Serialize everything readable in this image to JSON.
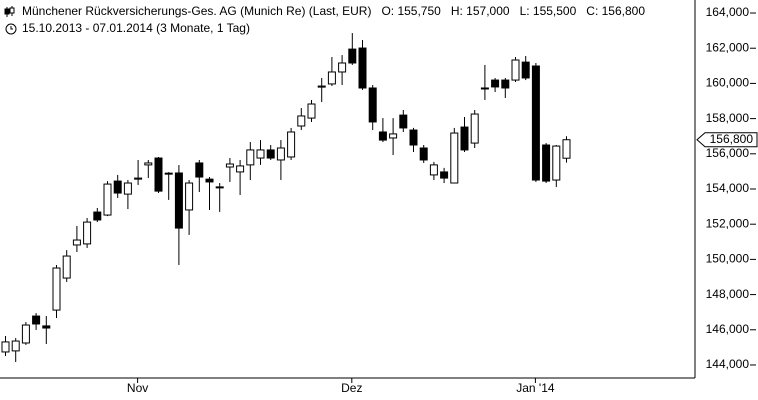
{
  "chart_data": {
    "type": "candlestick",
    "title": "Münchener Rückversicherungs-Ges. AG (Munich Re) (Last, EUR)",
    "ohlc_header": [
      "O: 155,750",
      "H: 157,000",
      "L: 155,500",
      "C: 156,800"
    ],
    "subtitle": "15.10.2013 - 07.01.2014 (3 Monate, 1 Tag)",
    "categories": [
      null,
      null,
      null,
      null,
      null,
      null,
      null,
      null,
      null,
      null,
      null,
      null,
      null,
      "Nov",
      null,
      null,
      null,
      null,
      null,
      null,
      null,
      null,
      null,
      null,
      null,
      null,
      null,
      null,
      null,
      null,
      null,
      null,
      null,
      null,
      "Dez",
      null,
      null,
      null,
      null,
      null,
      null,
      null,
      null,
      null,
      null,
      null,
      null,
      null,
      null,
      null,
      null,
      null,
      "Jan '14",
      null,
      null,
      null
    ],
    "open": [
      144740,
      144800,
      145250,
      146780,
      146220,
      147120,
      148940,
      150820,
      150880,
      152690,
      152520,
      154450,
      153710,
      154560,
      155370,
      155760,
      154900,
      154910,
      152810,
      155480,
      154560,
      154100,
      155250,
      154970,
      155370,
      155760,
      156220,
      155650,
      155820,
      157580,
      158030,
      159790,
      159970,
      160650,
      161950,
      162010,
      159740,
      157240,
      156900,
      158200,
      157350,
      156330,
      154800,
      154970,
      154340,
      157520,
      156610,
      159700,
      160190,
      160190,
      160190,
      161210,
      160990,
      156500,
      154510,
      155750
    ],
    "high": [
      145650,
      145530,
      146440,
      146950,
      146780,
      149680,
      150530,
      151900,
      152350,
      152920,
      154450,
      154800,
      154510,
      155650,
      155650,
      155820,
      154960,
      155360,
      154510,
      155650,
      154680,
      154340,
      155760,
      155650,
      156670,
      156780,
      156500,
      156780,
      157470,
      158600,
      159060,
      160310,
      161500,
      161610,
      162860,
      162470,
      159910,
      158030,
      158030,
      158490,
      157470,
      156500,
      155540,
      155200,
      157470,
      158090,
      158490,
      161050,
      160310,
      160310,
      161500,
      161560,
      161160,
      156610,
      156500,
      157000
    ],
    "low": [
      144510,
      144170,
      145140,
      145990,
      145190,
      146670,
      148720,
      150420,
      150650,
      152120,
      152460,
      153490,
      152860,
      154230,
      154620,
      153770,
      153380,
      149680,
      151390,
      153830,
      152810,
      152700,
      154400,
      153660,
      154510,
      155370,
      155650,
      154510,
      155650,
      157350,
      157810,
      158940,
      159850,
      159910,
      161050,
      159630,
      157350,
      156670,
      155930,
      157240,
      156100,
      155480,
      154510,
      154340,
      154340,
      156100,
      156330,
      159060,
      159510,
      159170,
      160080,
      160190,
      154400,
      154340,
      154110,
      155500
    ],
    "close": [
      145310,
      145360,
      146270,
      146330,
      146100,
      149510,
      150190,
      151100,
      152120,
      152240,
      154280,
      153770,
      154340,
      154620,
      155480,
      153880,
      154850,
      151780,
      154340,
      154680,
      154400,
      154120,
      155420,
      155310,
      156220,
      156220,
      155760,
      156330,
      157240,
      158150,
      158830,
      159850,
      160650,
      161160,
      161160,
      159740,
      157810,
      156780,
      157130,
      157470,
      156500,
      155650,
      155370,
      154620,
      157180,
      156220,
      158260,
      159740,
      159800,
      159740,
      161330,
      160310,
      154510,
      154450,
      156440,
      156800
    ],
    "last_price_label": "156,800",
    "up_color": "#ffffff",
    "down_color": "#000000",
    "ylim": [
      143260,
      164740
    ],
    "yticks": [
      {
        "value": 144000,
        "label": "144,000"
      },
      {
        "value": 146000,
        "label": "146,000"
      },
      {
        "value": 148000,
        "label": "148,000"
      },
      {
        "value": 150000,
        "label": "150,000"
      },
      {
        "value": 152000,
        "label": "152,000"
      },
      {
        "value": 154000,
        "label": "154,000"
      },
      {
        "value": 156000,
        "label": "156,000"
      },
      {
        "value": 158000,
        "label": "158,000"
      },
      {
        "value": 160000,
        "label": "160,000"
      },
      {
        "value": 162000,
        "label": "162,000"
      },
      {
        "value": 164000,
        "label": "164,000"
      }
    ]
  }
}
